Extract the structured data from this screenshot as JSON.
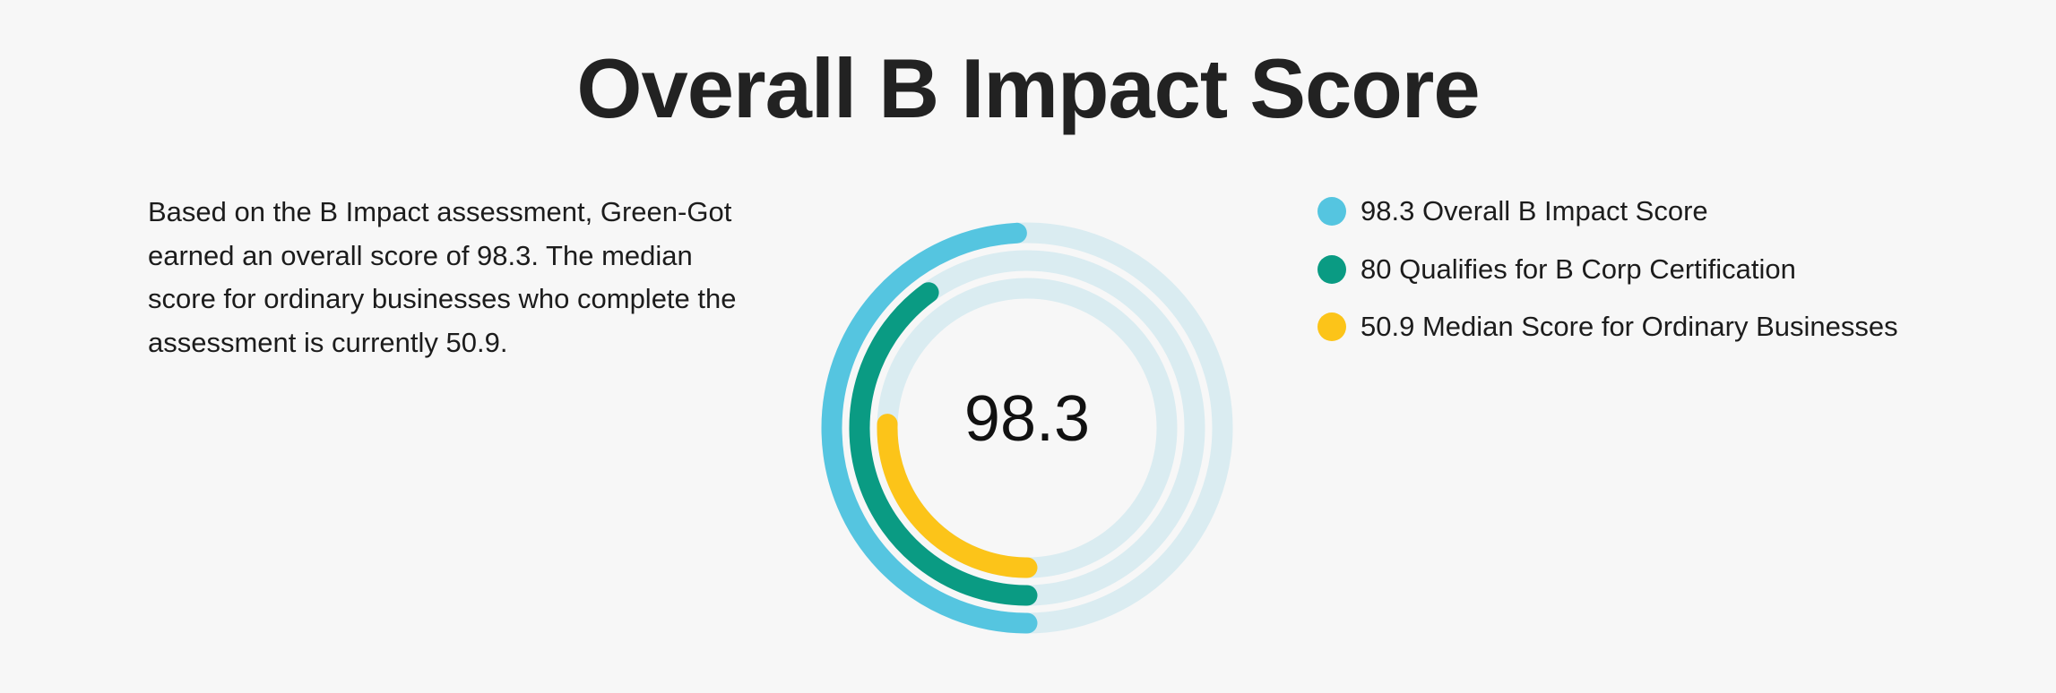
{
  "header": {
    "title": "Overall B Impact Score"
  },
  "summary": {
    "text": "Based on the B Impact assessment, Green-Got earned an overall score of 98.3. The median score for ordinary businesses who complete the assessment is currently 50.9."
  },
  "chart_data": {
    "type": "radial-bar",
    "center_label": "98.3",
    "max": 200,
    "track_color": "#daecf1",
    "series": [
      {
        "name": "98.3 Overall B Impact Score",
        "value": 98.3,
        "color": "#55c5e0"
      },
      {
        "name": "80 Qualifies for B Corp Certification",
        "value": 80,
        "color": "#0a9b83"
      },
      {
        "name": "50.9 Median Score for Ordinary Businesses",
        "value": 50.9,
        "color": "#fcc419"
      }
    ],
    "legend_position": "right"
  }
}
